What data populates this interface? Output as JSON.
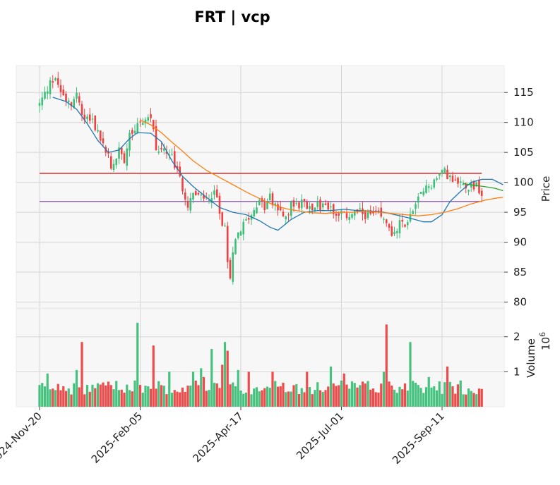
{
  "chart_data": {
    "type": "candlestick",
    "title": "FRT | vcp",
    "price_panel": {
      "ylabel": "Price",
      "y_ticks": [
        80,
        85,
        90,
        95,
        100,
        105,
        110,
        115
      ],
      "ylim": [
        79,
        119.5
      ],
      "grid": true,
      "horizontal_levels": [
        {
          "value": 101.5,
          "color": "#d62728"
        },
        {
          "value": 96.8,
          "color": "#9467bd"
        }
      ],
      "moving_averages": [
        {
          "color": "#1f77b4",
          "points": [
            [
              5,
              114.2
            ],
            [
              10,
              113.5
            ],
            [
              14,
              112.2
            ],
            [
              18,
              109.8
            ],
            [
              22,
              107.0
            ],
            [
              26,
              105.0
            ],
            [
              30,
              105.4
            ],
            [
              34,
              107.3
            ],
            [
              37,
              108.3
            ],
            [
              42,
              108.2
            ],
            [
              46,
              106.8
            ],
            [
              50,
              103.6
            ],
            [
              54,
              101.0
            ],
            [
              58,
              99.3
            ],
            [
              63,
              97.5
            ],
            [
              68,
              95.8
            ],
            [
              73,
              95.0
            ],
            [
              78,
              94.6
            ],
            [
              83,
              93.6
            ],
            [
              87,
              92.5
            ],
            [
              90,
              92.0
            ],
            [
              95,
              93.8
            ],
            [
              100,
              95.0
            ],
            [
              105,
              95.3
            ],
            [
              110,
              95.3
            ],
            [
              115,
              95.5
            ],
            [
              120,
              95.3
            ],
            [
              125,
              95.2
            ],
            [
              130,
              95.0
            ],
            [
              135,
              94.5
            ],
            [
              140,
              94.0
            ],
            [
              145,
              93.4
            ],
            [
              148,
              93.4
            ],
            [
              152,
              94.6
            ],
            [
              155,
              96.8
            ],
            [
              159,
              98.5
            ],
            [
              163,
              100.0
            ],
            [
              167,
              100.5
            ],
            [
              171,
              100.5
            ],
            [
              175,
              99.6
            ]
          ]
        },
        {
          "color": "#ff7f0e",
          "points": [
            [
              38,
              110.4
            ],
            [
              42,
              109.6
            ],
            [
              46,
              108.3
            ],
            [
              50,
              106.7
            ],
            [
              54,
              105.2
            ],
            [
              58,
              103.6
            ],
            [
              63,
              102.0
            ],
            [
              68,
              100.8
            ],
            [
              73,
              99.6
            ],
            [
              78,
              98.4
            ],
            [
              83,
              97.3
            ],
            [
              88,
              96.3
            ],
            [
              93,
              95.6
            ],
            [
              98,
              95.2
            ],
            [
              103,
              94.9
            ],
            [
              108,
              94.8
            ],
            [
              113,
              95.0
            ],
            [
              118,
              95.0
            ],
            [
              123,
              95.2
            ],
            [
              128,
              95.0
            ],
            [
              133,
              94.8
            ],
            [
              138,
              94.6
            ],
            [
              143,
              94.4
            ],
            [
              148,
              94.6
            ],
            [
              153,
              95.0
            ],
            [
              158,
              95.6
            ],
            [
              163,
              96.4
            ],
            [
              168,
              97.0
            ],
            [
              173,
              97.4
            ],
            [
              175,
              97.5
            ]
          ]
        },
        {
          "color": "#2ca02c",
          "points": [
            [
              160,
              99.8
            ],
            [
              164,
              99.5
            ],
            [
              168,
              99.3
            ],
            [
              172,
              99.0
            ],
            [
              175,
              98.6
            ]
          ]
        }
      ]
    },
    "volume_panel": {
      "ylabel": "Volume",
      "y_ticks": [
        1,
        2
      ],
      "exponent_label": "10",
      "exponent": "6",
      "ylim": [
        0,
        2.8
      ]
    },
    "x_ticks": [
      {
        "index": 0,
        "label": "2024-Nov-20"
      },
      {
        "index": 38,
        "label": "2025-Feb-05"
      },
      {
        "index": 76,
        "label": "2025-Apr-17"
      },
      {
        "index": 114,
        "label": "2025-Jul-01"
      },
      {
        "index": 152,
        "label": "2025-Sep-11"
      }
    ],
    "n_bars": 168,
    "anchor_closes": [
      [
        0,
        113.0
      ],
      [
        4,
        116.5
      ],
      [
        6,
        117.5
      ],
      [
        9,
        114.5
      ],
      [
        12,
        113.5
      ],
      [
        14,
        115.0
      ],
      [
        16,
        111.0
      ],
      [
        20,
        110.5
      ],
      [
        24,
        106.0
      ],
      [
        26,
        104.5
      ],
      [
        27,
        102.0
      ],
      [
        30,
        105.5
      ],
      [
        32,
        104.0
      ],
      [
        34,
        108.5
      ],
      [
        36,
        109.0
      ],
      [
        38,
        110.0
      ],
      [
        40,
        110.5
      ],
      [
        42,
        111.0
      ],
      [
        44,
        105.5
      ],
      [
        47,
        105.0
      ],
      [
        50,
        104.0
      ],
      [
        53,
        100.5
      ],
      [
        56,
        96.5
      ],
      [
        58,
        98.0
      ],
      [
        62,
        97.0
      ],
      [
        66,
        98.5
      ],
      [
        68,
        95.0
      ],
      [
        70,
        92.0
      ],
      [
        71,
        86.0
      ],
      [
        72,
        83.5
      ],
      [
        73,
        89.0
      ],
      [
        75,
        91.5
      ],
      [
        78,
        93.5
      ],
      [
        80,
        95.0
      ],
      [
        82,
        96.5
      ],
      [
        85,
        96.0
      ],
      [
        87,
        97.5
      ],
      [
        89,
        96.0
      ],
      [
        92,
        94.0
      ],
      [
        95,
        96.0
      ],
      [
        100,
        96.5
      ],
      [
        104,
        96.0
      ],
      [
        108,
        96.0
      ],
      [
        112,
        95.0
      ],
      [
        116,
        94.5
      ],
      [
        120,
        95.0
      ],
      [
        124,
        94.5
      ],
      [
        128,
        94.5
      ],
      [
        132,
        92.5
      ],
      [
        134,
        91.0
      ],
      [
        136,
        93.0
      ],
      [
        138,
        93.0
      ],
      [
        141,
        95.0
      ],
      [
        144,
        98.0
      ],
      [
        147,
        99.5
      ],
      [
        150,
        100.5
      ],
      [
        152,
        102.0
      ],
      [
        155,
        101.0
      ],
      [
        158,
        100.0
      ],
      [
        162,
        99.5
      ],
      [
        165,
        99.5
      ],
      [
        167,
        97.5
      ]
    ],
    "volume_spikes": [
      [
        3,
        0.95
      ],
      [
        14,
        1.05
      ],
      [
        16,
        1.85
      ],
      [
        36,
        0.75
      ],
      [
        37,
        2.4
      ],
      [
        43,
        1.75
      ],
      [
        49,
        1.0
      ],
      [
        58,
        1.0
      ],
      [
        61,
        1.1
      ],
      [
        62,
        0.85
      ],
      [
        65,
        1.65
      ],
      [
        69,
        1.2
      ],
      [
        70,
        1.85
      ],
      [
        71,
        1.6
      ],
      [
        75,
        1.05
      ],
      [
        79,
        1.0
      ],
      [
        88,
        1.0
      ],
      [
        101,
        1.0
      ],
      [
        110,
        1.15
      ],
      [
        115,
        0.95
      ],
      [
        130,
        1.0
      ],
      [
        131,
        2.35
      ],
      [
        140,
        1.85
      ],
      [
        147,
        0.85
      ],
      [
        154,
        1.15
      ],
      [
        159,
        0.75
      ]
    ],
    "up_color": "#3cbf78",
    "down_color": "#f04040"
  }
}
